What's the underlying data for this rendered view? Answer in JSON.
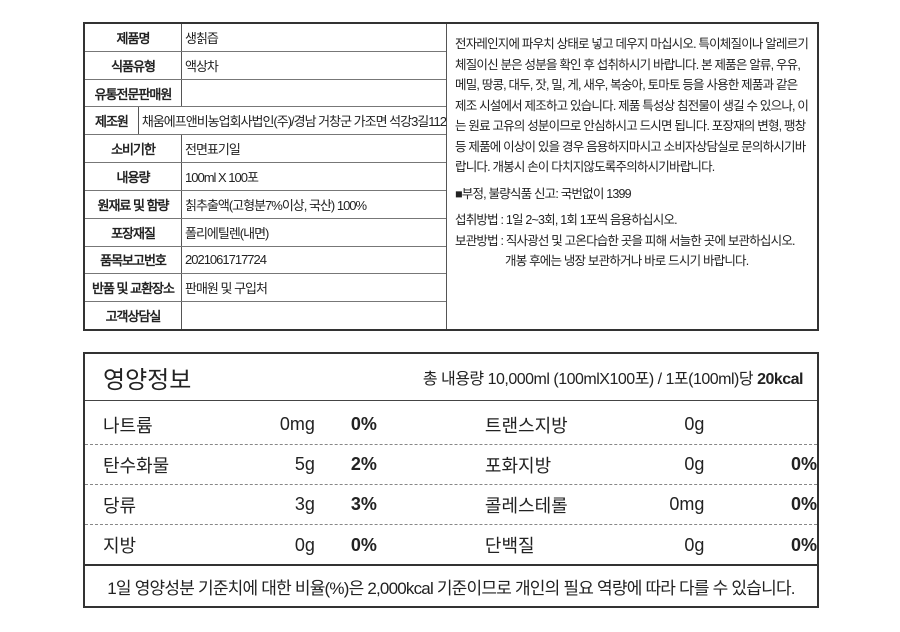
{
  "product_info": [
    {
      "label": "제품명",
      "value": "생칡즙"
    },
    {
      "label": "식품유형",
      "value": "액상차"
    },
    {
      "label": "유통전문판매원",
      "value": ""
    },
    {
      "label": "제조원",
      "value": "채움에프앤비농업회사법인(주)/경남 거창군 가조면 석강3길112"
    },
    {
      "label": "소비기한",
      "value": "전면표기일"
    },
    {
      "label": "내용량",
      "value": "100ml X 100포"
    },
    {
      "label": "원재료 및 함량",
      "value": "칡추출액(고형분7%이상, 국산) 100%"
    },
    {
      "label": "포장재질",
      "value": "폴리에틸렌(내면)"
    },
    {
      "label": "품목보고번호",
      "value": "2021061717724"
    },
    {
      "label": "반품 및 교환장소",
      "value": "판매원 및 구입처"
    },
    {
      "label": "고객상담실",
      "value": ""
    }
  ],
  "notes": {
    "caution": "전자레인지에 파우치 상태로 넣고 데우지 마십시오. 특이체질이나 알레르기 체질이신 분은 성분을 확인 후 섭취하시기 바랍니다. 본 제품은 알류, 우유, 메밀, 땅콩, 대두, 잣, 밀, 게, 새우, 복숭아, 토마토 등을 사용한 제품과 같은 제조 시설에서 제조하고 있습니다. 제품 특성상 침전물이 생길 수 있으나, 이는 원료 고유의 성분이므로 안심하시고 드시면 됩니다. 포장재의 변형, 팽창 등 제품에 이상이 있을 경우 음용하지마시고 소비자상담실로 문의하시기바랍니다. 개봉시 손이 다치지않도록주의하시기바랍니다.",
    "report": "■부정, 불량식품 신고: 국번없이 1399",
    "intake": "섭취방법 : 1일 2~3회, 1회 1포씩 음용하십시오.",
    "storage": "보관방법 : 직사광선 및 고온다습한 곳을 피해 서늘한 곳에 보관하십시오.",
    "storage2": "개봉 후에는 냉장 보관하거나 바로 드시기 바랍니다."
  },
  "nutrition": {
    "title": "영양정보",
    "serving": "총 내용량 10,000ml (100mlX100포) / 1포(100ml)당",
    "kcal": "20kcal",
    "rows": [
      {
        "n1": "나트륨",
        "a1": "0mg",
        "p1": "0%",
        "n2": "트랜스지방",
        "a2": "0g",
        "p2": ""
      },
      {
        "n1": "탄수화물",
        "a1": "5g",
        "p1": "2%",
        "n2": "포화지방",
        "a2": "0g",
        "p2": "0%"
      },
      {
        "n1": "당류",
        "a1": "3g",
        "p1": "3%",
        "n2": "콜레스테롤",
        "a2": "0mg",
        "p2": "0%"
      },
      {
        "n1": "지방",
        "a1": "0g",
        "p1": "0%",
        "n2": "단백질",
        "a2": "0g",
        "p2": "0%"
      }
    ],
    "footnote": "1일 영양성분 기준치에 대한 비율(%)은 2,000kcal 기준이므로 개인의 필요 역량에 따라 다를 수 있습니다."
  }
}
